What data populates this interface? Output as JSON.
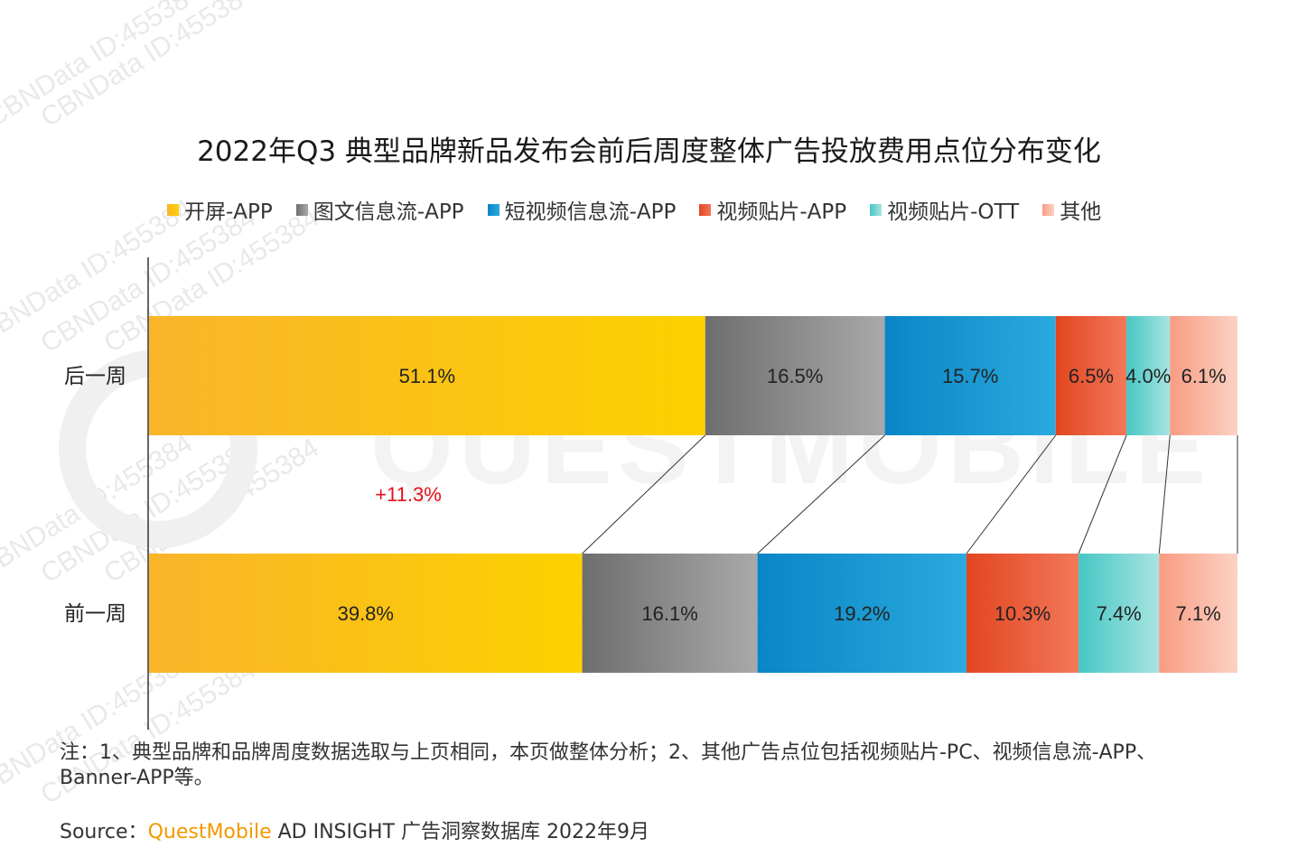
{
  "watermark_text": "CBNData ID:455384",
  "background_logo_text": "QUESTMOBILE",
  "chart_data": {
    "type": "bar",
    "orientation": "horizontal",
    "stacked": true,
    "title": "2022年Q3 典型品牌新品发布会前后周度整体广告投放费用点位分布变化",
    "categories": [
      "后一周",
      "前一周"
    ],
    "series": [
      {
        "name": "开屏-APP",
        "color_start": "#f9b42a",
        "color_end": "#fdd100",
        "values": [
          51.1,
          39.8
        ],
        "labels": [
          "51.1%",
          "39.8%"
        ]
      },
      {
        "name": "图文信息流-APP",
        "color_start": "#6e6e6e",
        "color_end": "#a9a9a9",
        "values": [
          16.5,
          16.1
        ],
        "labels": [
          "16.5%",
          "16.1%"
        ]
      },
      {
        "name": "短视频信息流-APP",
        "color_start": "#0a86c6",
        "color_end": "#2aaade",
        "values": [
          15.7,
          19.2
        ],
        "labels": [
          "15.7%",
          "19.2%"
        ]
      },
      {
        "name": "视频贴片-APP",
        "color_start": "#e24620",
        "color_end": "#f2785a",
        "values": [
          6.5,
          10.3
        ],
        "labels": [
          "6.5%",
          "10.3%"
        ]
      },
      {
        "name": "视频贴片-OTT",
        "color_start": "#46c7c4",
        "color_end": "#a9e4e2",
        "values": [
          4.0,
          7.4
        ],
        "labels": [
          "4.0%",
          "7.4%"
        ]
      },
      {
        "name": "其他",
        "color_start": "#f99c82",
        "color_end": "#fbd2c4",
        "values": [
          6.1,
          7.1
        ],
        "labels": [
          "6.1%",
          "7.1%"
        ]
      }
    ],
    "annotations": [
      {
        "text": "+11.3%",
        "color": "#e8111b"
      }
    ],
    "xlim": [
      0,
      100
    ],
    "grid": false,
    "legend_position": "top"
  },
  "footnote": "注：1、典型品牌和品牌周度数据选取与上页相同，本页做整体分析；2、其他广告点位包括视频贴片-PC、视频信息流-APP、Banner-APP等。",
  "source": {
    "label": "Source：",
    "brand": "QuestMobile",
    "rest": " AD INSIGHT 广告洞察数据库 2022年9月"
  }
}
